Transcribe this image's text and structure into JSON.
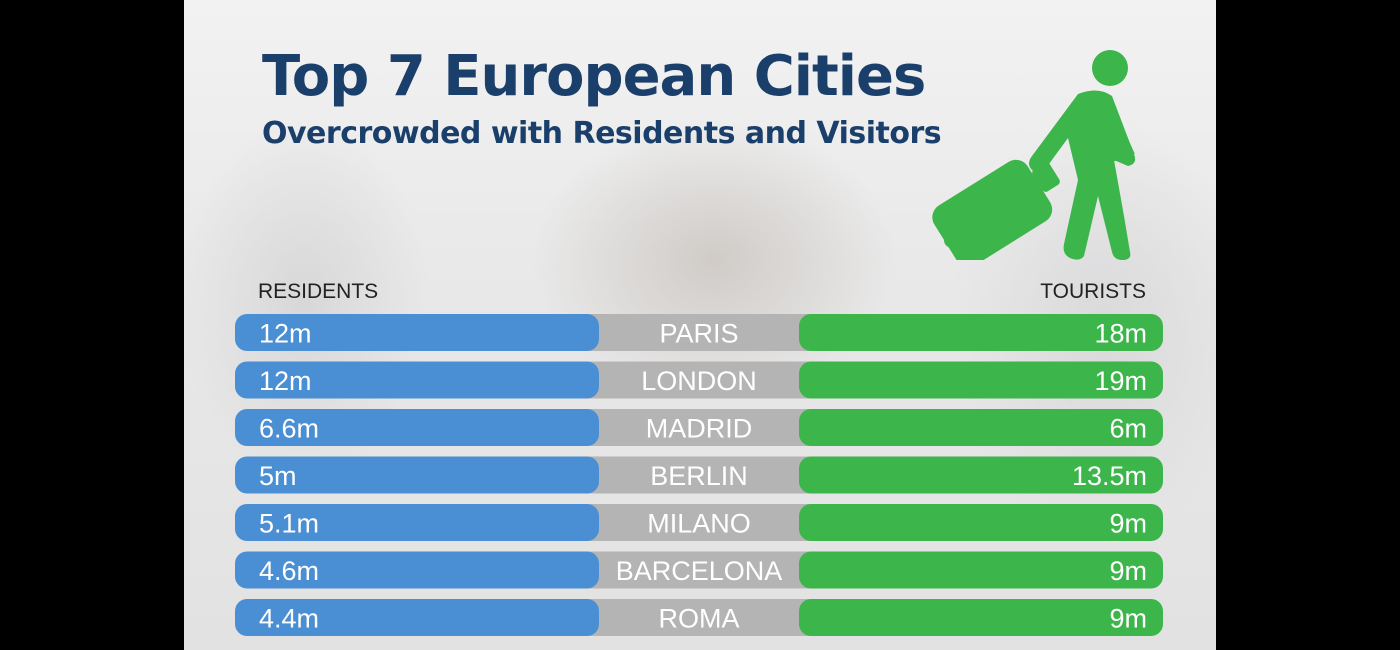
{
  "header": {
    "title": "Top 7 European Cities",
    "subtitle": "Overcrowded with Residents and Visitors"
  },
  "icons": {
    "traveler": "traveler-with-suitcase-icon"
  },
  "colors": {
    "residents": "#4a8fd3",
    "tourists": "#3cb54a",
    "city": "#b4b4b4",
    "title": "#1b3f6b"
  },
  "chart_data": {
    "type": "table",
    "column_headers": {
      "residents": "RESIDENTS",
      "tourists": "TOURISTS"
    },
    "rows": [
      {
        "city": "PARIS",
        "residents": "12m",
        "tourists": "18m"
      },
      {
        "city": "LONDON",
        "residents": "12m",
        "tourists": "19m"
      },
      {
        "city": "MADRID",
        "residents": "6.6m",
        "tourists": "6m"
      },
      {
        "city": "BERLIN",
        "residents": "5m",
        "tourists": "13.5m"
      },
      {
        "city": "MILANO",
        "residents": "5.1m",
        "tourists": "9m"
      },
      {
        "city": "BARCELONA",
        "residents": "4.6m",
        "tourists": "9m"
      },
      {
        "city": "ROMA",
        "residents": "4.4m",
        "tourists": "9m"
      }
    ]
  }
}
